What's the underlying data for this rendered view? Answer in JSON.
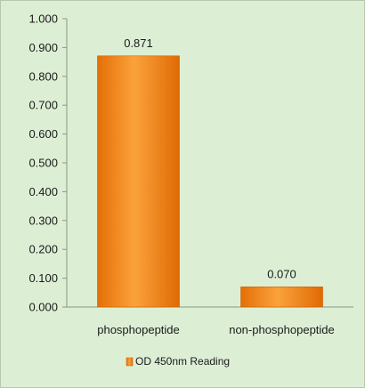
{
  "chart_data": {
    "type": "bar",
    "categories": [
      "phosphopeptide",
      "non-phosphopeptide"
    ],
    "series": [
      {
        "name": "OD 450nm Reading",
        "values": [
          0.871,
          0.07
        ],
        "data_labels": [
          "0.871",
          "0.070"
        ],
        "color": "#f28a18"
      }
    ],
    "ylim": [
      0,
      1.0
    ],
    "yticks": [
      0.0,
      0.1,
      0.2,
      0.3,
      0.4,
      0.5,
      0.6,
      0.7,
      0.8,
      0.9,
      1.0
    ],
    "ytick_labels": [
      "0.000",
      "0.100",
      "0.200",
      "0.300",
      "0.400",
      "0.500",
      "0.600",
      "0.700",
      "0.800",
      "0.900",
      "1.000"
    ],
    "grid": false,
    "legend_position": "bottom",
    "background_color": "#dcefd5"
  }
}
